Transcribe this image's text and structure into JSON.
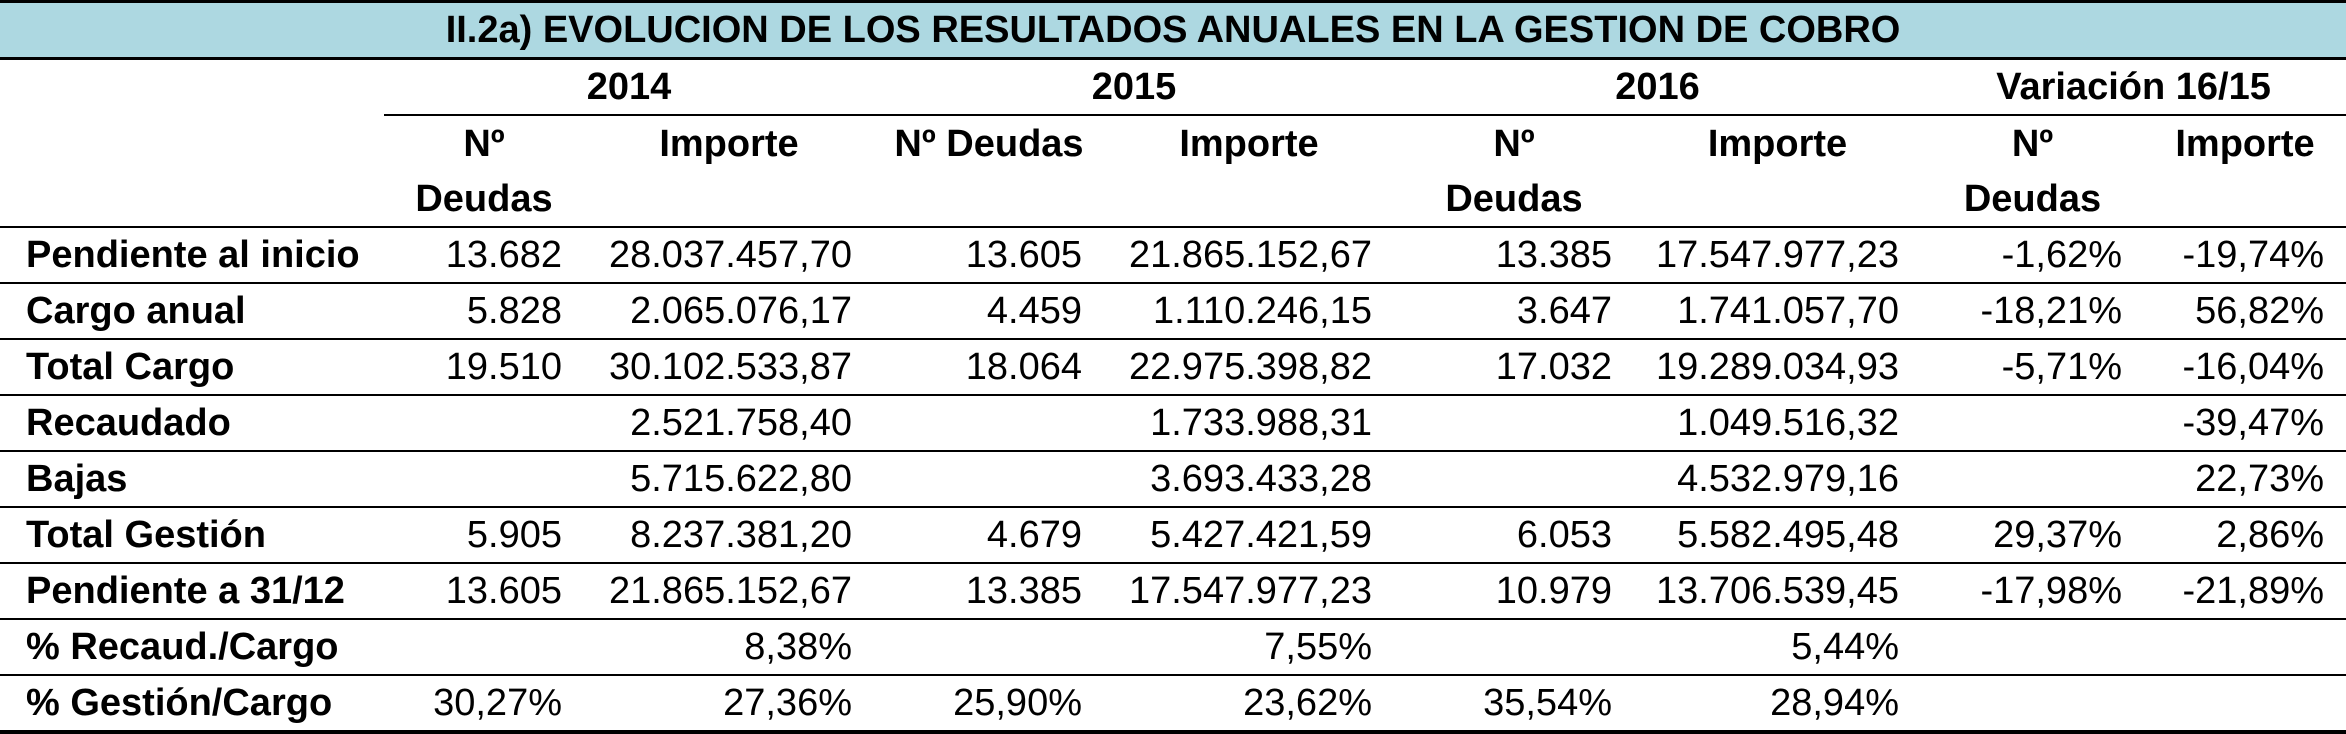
{
  "title": "II.2a) EVOLUCION DE LOS RESULTADOS ANUALES EN LA GESTION DE COBRO",
  "years": [
    "2014",
    "2015",
    "2016",
    "Variación 16/15"
  ],
  "subheaders": {
    "y2014": {
      "n_line1": "Nº",
      "n_line2": "Deudas",
      "importe": "Importe"
    },
    "y2015": {
      "n_line1": "Nº Deudas",
      "importe": "Importe"
    },
    "y2016": {
      "n_line1": "Nº",
      "n_line2": "Deudas",
      "importe": "Importe"
    },
    "var": {
      "n_line1": "Nº",
      "n_line2": "Deudas",
      "importe": "Importe"
    }
  },
  "rows": [
    {
      "label": "Pendiente al inicio",
      "cells": [
        "13.682",
        "28.037.457,70",
        "13.605",
        "21.865.152,67",
        "13.385",
        "17.547.977,23",
        "-1,62%",
        "-19,74%"
      ]
    },
    {
      "label": "Cargo anual",
      "cells": [
        "5.828",
        "2.065.076,17",
        "4.459",
        "1.110.246,15",
        "3.647",
        "1.741.057,70",
        "-18,21%",
        "56,82%"
      ]
    },
    {
      "label": "Total Cargo",
      "cells": [
        "19.510",
        "30.102.533,87",
        "18.064",
        "22.975.398,82",
        "17.032",
        "19.289.034,93",
        "-5,71%",
        "-16,04%"
      ]
    },
    {
      "label": "Recaudado",
      "cells": [
        "",
        "2.521.758,40",
        "",
        "1.733.988,31",
        "",
        "1.049.516,32",
        "",
        "-39,47%"
      ]
    },
    {
      "label": "Bajas",
      "cells": [
        "",
        "5.715.622,80",
        "",
        "3.693.433,28",
        "",
        "4.532.979,16",
        "",
        "22,73%"
      ]
    },
    {
      "label": "Total Gestión",
      "cells": [
        "5.905",
        "8.237.381,20",
        "4.679",
        "5.427.421,59",
        "6.053",
        "5.582.495,48",
        "29,37%",
        "2,86%"
      ]
    },
    {
      "label": "Pendiente a 31/12",
      "cells": [
        "13.605",
        "21.865.152,67",
        "13.385",
        "17.547.977,23",
        "10.979",
        "13.706.539,45",
        "-17,98%",
        "-21,89%"
      ]
    },
    {
      "label": "% Recaud./Cargo",
      "cells": [
        "",
        "8,38%",
        "",
        "7,55%",
        "",
        "5,44%",
        "",
        ""
      ]
    },
    {
      "label": "% Gestión/Cargo",
      "cells": [
        "30,27%",
        "27,36%",
        "25,90%",
        "23,62%",
        "35,54%",
        "28,94%",
        "",
        ""
      ]
    }
  ],
  "colors": {
    "title_bg": "#add8e1",
    "border": "#000000"
  }
}
